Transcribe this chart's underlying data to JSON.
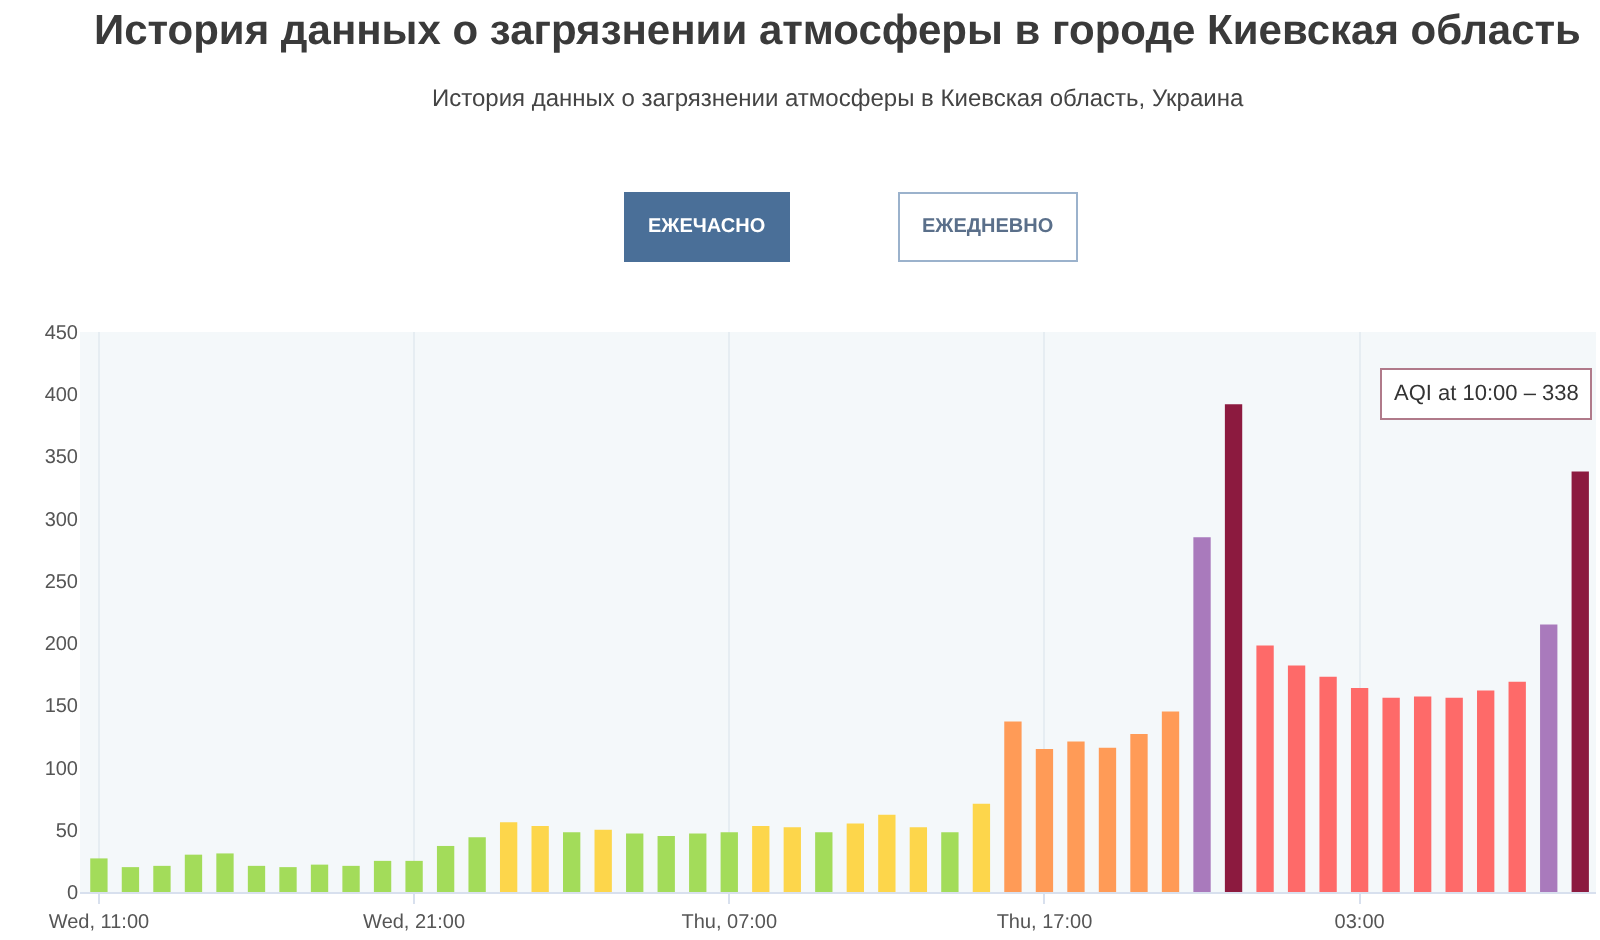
{
  "chart_data": {
    "type": "bar",
    "title": "История данных о загрязнении атмосферы в городе Киевская область",
    "subtitle": "История данных о загрязнении атмосферы в Киевская область, Украина",
    "categories": [
      "Wed, 11:00",
      null,
      null,
      null,
      null,
      null,
      null,
      null,
      null,
      null,
      "Wed, 21:00",
      null,
      null,
      null,
      null,
      null,
      null,
      null,
      null,
      null,
      "Thu, 07:00",
      null,
      null,
      null,
      null,
      null,
      null,
      null,
      null,
      null,
      "Thu, 17:00",
      null,
      null,
      null,
      null,
      null,
      null,
      null,
      null,
      null,
      "03:00",
      null,
      null,
      null,
      null,
      null,
      null,
      null
    ],
    "values": [
      27,
      20,
      21,
      30,
      31,
      21,
      20,
      22,
      21,
      25,
      25,
      37,
      44,
      56,
      53,
      48,
      50,
      47,
      45,
      47,
      48,
      53,
      52,
      48,
      55,
      62,
      52,
      48,
      71,
      137,
      115,
      121,
      116,
      127,
      145,
      285,
      392,
      198,
      182,
      173,
      164,
      156,
      157,
      156,
      162,
      169,
      215,
      338
    ],
    "colors": [
      "#a3dc5a",
      "#a3dc5a",
      "#a3dc5a",
      "#a3dc5a",
      "#a3dc5a",
      "#a3dc5a",
      "#a3dc5a",
      "#a3dc5a",
      "#a3dc5a",
      "#a3dc5a",
      "#a3dc5a",
      "#a3dc5a",
      "#a3dc5a",
      "#fdd64b",
      "#fdd64b",
      "#a3dc5a",
      "#fdd64b",
      "#a3dc5a",
      "#a3dc5a",
      "#a3dc5a",
      "#a3dc5a",
      "#fdd64b",
      "#fdd64b",
      "#a3dc5a",
      "#fdd64b",
      "#fdd64b",
      "#fdd64b",
      "#a3dc5a",
      "#fdd64b",
      "#ff9b57",
      "#ff9b57",
      "#ff9b57",
      "#ff9b57",
      "#ff9b57",
      "#ff9b57",
      "#a97abc",
      "#8c1a3f",
      "#fe6a69",
      "#fe6a69",
      "#fe6a69",
      "#fe6a69",
      "#fe6a69",
      "#fe6a69",
      "#fe6a69",
      "#fe6a69",
      "#fe6a69",
      "#a97abc",
      "#8c1a3f"
    ],
    "ylim": [
      0,
      450
    ],
    "yticks": [
      0,
      50,
      100,
      150,
      200,
      250,
      300,
      350,
      400,
      450
    ],
    "grid": "x",
    "annotations": [
      "ЕЖЕЧАСНО",
      "ЕЖЕДНЕВНО",
      "AQI at 10:00 – 338"
    ]
  }
}
